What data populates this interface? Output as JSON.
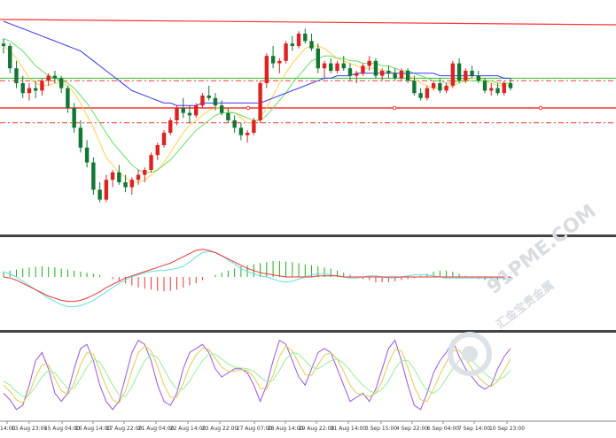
{
  "chart_data": [
    {
      "type": "candlestick",
      "panel": "price",
      "x_tick_labels": [
        "14:00",
        "13 Aug 23:00",
        "15 Aug 04:00",
        "16 Aug 14:00",
        "17 Aug 22:00",
        "21 Aug 04:00",
        "22 Aug 14:00",
        "23 Aug 22:00",
        "27 Aug 07:00",
        "28 Aug 14:00",
        "29 Aug 22:00",
        "31 Aug 14:00",
        "3 Sep 15:00",
        "4 Sep 22:00",
        "6 Sep 04:00",
        "7 Sep 14:00",
        "10 Sep 23:00"
      ],
      "ohlc": [
        [
          86,
          88,
          82,
          85
        ],
        [
          85,
          86,
          74,
          76
        ],
        [
          76,
          79,
          68,
          70
        ],
        [
          70,
          73,
          64,
          66
        ],
        [
          66,
          70,
          63,
          68
        ],
        [
          68,
          71,
          64,
          67
        ],
        [
          67,
          72,
          65,
          71
        ],
        [
          71,
          74,
          69,
          73
        ],
        [
          73,
          75,
          70,
          72
        ],
        [
          72,
          73,
          66,
          68
        ],
        [
          68,
          69,
          58,
          60
        ],
        [
          60,
          62,
          50,
          52
        ],
        [
          52,
          55,
          42,
          44
        ],
        [
          44,
          47,
          36,
          38
        ],
        [
          38,
          40,
          25,
          27
        ],
        [
          27,
          30,
          22,
          23
        ],
        [
          23,
          33,
          22,
          31
        ],
        [
          31,
          35,
          28,
          34
        ],
        [
          34,
          37,
          29,
          30
        ],
        [
          30,
          33,
          26,
          28
        ],
        [
          28,
          32,
          25,
          31
        ],
        [
          31,
          35,
          29,
          33
        ],
        [
          33,
          36,
          30,
          35
        ],
        [
          35,
          42,
          34,
          41
        ],
        [
          41,
          46,
          39,
          45
        ],
        [
          45,
          51,
          44,
          50
        ],
        [
          50,
          56,
          49,
          55
        ],
        [
          55,
          61,
          53,
          60
        ],
        [
          60,
          64,
          56,
          58
        ],
        [
          58,
          61,
          54,
          57
        ],
        [
          57,
          62,
          56,
          61
        ],
        [
          61,
          66,
          60,
          65
        ],
        [
          65,
          69,
          63,
          64
        ],
        [
          64,
          66,
          59,
          61
        ],
        [
          61,
          63,
          57,
          58
        ],
        [
          58,
          60,
          54,
          55
        ],
        [
          55,
          57,
          50,
          52
        ],
        [
          52,
          54,
          47,
          49
        ],
        [
          49,
          51,
          46,
          50
        ],
        [
          50,
          56,
          49,
          55
        ],
        [
          55,
          71,
          54,
          70
        ],
        [
          70,
          82,
          68,
          81
        ],
        [
          81,
          85,
          76,
          78
        ],
        [
          78,
          80,
          74,
          79
        ],
        [
          79,
          87,
          78,
          86
        ],
        [
          86,
          89,
          83,
          85
        ],
        [
          85,
          91,
          84,
          90
        ],
        [
          90,
          92,
          86,
          87
        ],
        [
          87,
          90,
          83,
          84
        ],
        [
          84,
          86,
          74,
          76
        ],
        [
          76,
          79,
          72,
          78
        ],
        [
          78,
          80,
          74,
          75
        ],
        [
          75,
          79,
          74,
          78
        ],
        [
          78,
          81,
          75,
          76
        ],
        [
          76,
          78,
          71,
          73
        ],
        [
          73,
          75,
          70,
          74
        ],
        [
          74,
          78,
          73,
          77
        ],
        [
          77,
          81,
          75,
          79
        ],
        [
          79,
          80,
          72,
          73
        ],
        [
          73,
          76,
          71,
          75
        ],
        [
          75,
          77,
          72,
          74
        ],
        [
          74,
          76,
          71,
          72
        ],
        [
          72,
          76,
          71,
          75
        ],
        [
          75,
          76,
          70,
          71
        ],
        [
          71,
          73,
          65,
          66
        ],
        [
          66,
          68,
          63,
          64
        ],
        [
          64,
          69,
          63,
          68
        ],
        [
          68,
          71,
          67,
          70
        ],
        [
          70,
          72,
          66,
          67
        ],
        [
          67,
          70,
          66,
          69
        ],
        [
          69,
          79,
          68,
          78
        ],
        [
          78,
          80,
          70,
          71
        ],
        [
          71,
          76,
          70,
          75
        ],
        [
          75,
          77,
          72,
          73
        ],
        [
          73,
          75,
          70,
          71
        ],
        [
          71,
          72,
          66,
          67
        ],
        [
          67,
          70,
          65,
          68
        ],
        [
          68,
          70,
          65,
          66
        ],
        [
          66,
          71,
          65,
          70
        ],
        [
          70,
          72,
          67,
          68
        ]
      ],
      "ma_lines": [
        {
          "color": "#ffd24d",
          "values": [
            85,
            83,
            80,
            76,
            72,
            70,
            69,
            69,
            70,
            70,
            69,
            66,
            62,
            57,
            52,
            46,
            40,
            37,
            34,
            32,
            30,
            30,
            31,
            33,
            35,
            38,
            42,
            46,
            50,
            53,
            55,
            57,
            59,
            60,
            60,
            59,
            58,
            56,
            54,
            54,
            56,
            60,
            65,
            70,
            74,
            78,
            81,
            84,
            85,
            85,
            84,
            82,
            80,
            79,
            78,
            77,
            76,
            76,
            76,
            75,
            75,
            74,
            74,
            73,
            72,
            70,
            69,
            68,
            68,
            68,
            69,
            70,
            71,
            72,
            72,
            71,
            70,
            69,
            69,
            69
          ]
        },
        {
          "color": "#66dd66",
          "values": [
            88,
            87,
            85,
            83,
            80,
            77,
            75,
            73,
            72,
            71,
            70,
            68,
            65,
            62,
            58,
            54,
            50,
            46,
            43,
            40,
            37,
            35,
            34,
            34,
            35,
            37,
            39,
            42,
            45,
            48,
            51,
            53,
            55,
            57,
            58,
            58,
            58,
            57,
            56,
            55,
            55,
            57,
            60,
            63,
            66,
            70,
            73,
            76,
            79,
            80,
            81,
            81,
            80,
            80,
            79,
            79,
            78,
            78,
            78,
            77,
            77,
            76,
            75,
            75,
            74,
            73,
            72,
            71,
            71,
            70,
            70,
            71,
            71,
            71,
            71,
            71,
            71,
            70,
            70,
            70
          ]
        },
        {
          "color": "#3a3aee",
          "values": [
            95,
            94,
            93,
            92,
            91,
            90,
            89,
            88,
            87,
            86,
            85,
            84,
            83,
            81,
            79,
            77,
            75,
            73,
            71,
            69,
            67,
            66,
            65,
            64,
            63,
            62,
            62,
            61,
            61,
            61,
            61,
            62,
            62,
            62,
            62,
            62,
            62,
            62,
            62,
            62,
            62,
            63,
            64,
            65,
            66,
            67,
            68,
            69,
            70,
            71,
            72,
            72,
            73,
            73,
            73,
            74,
            74,
            74,
            74,
            74,
            74,
            74,
            74,
            74,
            74,
            74,
            74,
            74,
            73,
            73,
            73,
            73,
            73,
            73,
            73,
            73,
            73,
            73,
            72,
            72
          ]
        }
      ],
      "horizontal_lines": [
        {
          "color": "#ff3333",
          "style": "solid",
          "value": 95
        },
        {
          "color": "#ff3333",
          "style": "solid",
          "value": 60
        },
        {
          "color": "#33bb33",
          "style": "solid",
          "value": 72
        },
        {
          "color": "#ff3333",
          "style": "dashdot",
          "value": 71
        },
        {
          "color": "#ff3333",
          "style": "dashdot",
          "value": 60
        },
        {
          "color": "#ff3333",
          "style": "dashdot",
          "value": 54
        }
      ]
    },
    {
      "type": "histogram",
      "panel": "macd",
      "values": [
        0.5,
        0.6,
        0.7,
        0.8,
        0.9,
        0.95,
        1.0,
        0.95,
        0.9,
        0.8,
        0.7,
        0.6,
        0.5,
        0.4,
        0.3,
        0.2,
        0.0,
        -0.2,
        -0.4,
        -0.6,
        -0.8,
        -1.0,
        -1.1,
        -1.2,
        -1.3,
        -1.35,
        -1.3,
        -1.2,
        -1.0,
        -0.8,
        -0.6,
        -0.3,
        0.0,
        0.2,
        0.4,
        0.6,
        0.8,
        1.0,
        1.1,
        1.2,
        1.3,
        1.4,
        1.5,
        1.5,
        1.45,
        1.4,
        1.3,
        1.2,
        1.1,
        1.0,
        0.9,
        0.8,
        0.6,
        0.4,
        0.2,
        0.0,
        -0.2,
        -0.3,
        -0.5,
        -0.5,
        -0.5,
        -0.4,
        -0.3,
        -0.2,
        -0.1,
        0.1,
        0.3,
        0.5,
        0.6,
        0.6,
        0.5,
        0.3,
        0.1,
        -0.1,
        -0.2,
        -0.3,
        -0.3,
        -0.3,
        -0.3,
        -0.2
      ],
      "signal_lines": [
        {
          "color": "#66dddd",
          "values": [
            0.5,
            0.3,
            0.0,
            -0.4,
            -0.8,
            -1.2,
            -1.6,
            -2.0,
            -2.3,
            -2.6,
            -2.8,
            -2.8,
            -2.7,
            -2.5,
            -2.2,
            -1.8,
            -1.4,
            -1.0,
            -0.6,
            -0.3,
            0.0,
            0.2,
            0.4,
            0.5,
            0.6,
            0.6,
            0.7,
            0.8,
            1.0,
            1.4,
            1.9,
            2.3,
            2.4,
            2.3,
            2.0,
            1.6,
            1.2,
            0.8,
            0.5,
            0.3,
            0.1,
            0.0,
            -0.2,
            -0.4,
            -0.5,
            -0.4,
            -0.2,
            0.0,
            0.2,
            0.3,
            0.3,
            0.2,
            0.1,
            0.0,
            -0.1,
            -0.1,
            0.0,
            0.1,
            0.1,
            0.0,
            -0.1,
            -0.1,
            0.0,
            0.1,
            0.2,
            0.2,
            0.2,
            0.1,
            0.0,
            -0.1,
            -0.1,
            -0.1,
            -0.1,
            -0.1,
            -0.1,
            -0.1,
            -0.1,
            -0.1,
            -0.1,
            -0.1
          ]
        },
        {
          "color": "#ee3333",
          "values": [
            0.0,
            -0.1,
            -0.3,
            -0.6,
            -0.9,
            -1.2,
            -1.5,
            -1.8,
            -2.0,
            -2.2,
            -2.3,
            -2.3,
            -2.2,
            -2.0,
            -1.7,
            -1.4,
            -1.0,
            -0.7,
            -0.4,
            -0.1,
            0.1,
            0.3,
            0.5,
            0.7,
            0.9,
            1.1,
            1.3,
            1.6,
            1.9,
            2.2,
            2.5,
            2.6,
            2.5,
            2.3,
            2.0,
            1.7,
            1.4,
            1.1,
            0.8,
            0.6,
            0.4,
            0.3,
            0.2,
            0.1,
            0.0,
            0.0,
            0.0,
            0.0,
            0.0,
            0.1,
            0.1,
            0.1,
            0.1,
            0.0,
            0.0,
            0.0,
            0.0,
            0.0,
            0.0,
            0.0,
            0.0,
            0.0,
            0.0,
            0.0,
            0.0,
            0.0,
            0.0,
            0.0,
            0.0,
            0.0,
            0.0,
            0.0,
            0.0,
            0.0,
            0.0,
            0.0,
            0.0,
            0.0,
            0.0,
            0.0
          ]
        }
      ]
    },
    {
      "type": "line",
      "panel": "oscillator",
      "series": [
        {
          "color": "#9955dd",
          "values": [
            30,
            22,
            10,
            15,
            40,
            70,
            80,
            60,
            30,
            20,
            30,
            60,
            85,
            90,
            70,
            40,
            20,
            10,
            20,
            50,
            80,
            95,
            90,
            70,
            40,
            20,
            15,
            30,
            60,
            80,
            85,
            90,
            80,
            60,
            50,
            55,
            60,
            60,
            55,
            40,
            20,
            40,
            70,
            95,
            90,
            70,
            50,
            40,
            60,
            80,
            85,
            80,
            60,
            40,
            20,
            25,
            30,
            20,
            35,
            60,
            85,
            95,
            70,
            40,
            15,
            10,
            30,
            55,
            70,
            80,
            95,
            75,
            60,
            50,
            40,
            35,
            40,
            60,
            75,
            85
          ]
        },
        {
          "color": "#ddcc55",
          "values": [
            40,
            32,
            22,
            18,
            30,
            50,
            65,
            65,
            48,
            33,
            28,
            42,
            65,
            80,
            78,
            58,
            38,
            22,
            18,
            33,
            58,
            80,
            88,
            82,
            63,
            40,
            25,
            25,
            42,
            63,
            77,
            85,
            84,
            73,
            62,
            57,
            57,
            59,
            58,
            50,
            36,
            35,
            52,
            75,
            88,
            82,
            67,
            53,
            52,
            65,
            77,
            80,
            72,
            57,
            40,
            30,
            28,
            26,
            30,
            45,
            67,
            84,
            82,
            62,
            38,
            22,
            20,
            35,
            53,
            68,
            82,
            83,
            72,
            60,
            50,
            42,
            38,
            45,
            58,
            72
          ]
        },
        {
          "color": "#99ee99",
          "values": [
            45,
            40,
            32,
            26,
            28,
            38,
            50,
            58,
            55,
            45,
            36,
            36,
            48,
            62,
            72,
            68,
            55,
            40,
            28,
            26,
            38,
            55,
            70,
            78,
            74,
            60,
            45,
            35,
            35,
            45,
            58,
            70,
            78,
            78,
            72,
            66,
            62,
            61,
            60,
            57,
            50,
            44,
            46,
            58,
            72,
            80,
            78,
            70,
            62,
            60,
            65,
            70,
            72,
            67,
            58,
            48,
            40,
            33,
            30,
            35,
            45,
            60,
            70,
            70,
            60,
            45,
            33,
            30,
            36,
            48,
            60,
            70,
            74,
            70,
            62,
            54,
            48,
            46,
            50,
            58
          ]
        }
      ]
    }
  ]
}
